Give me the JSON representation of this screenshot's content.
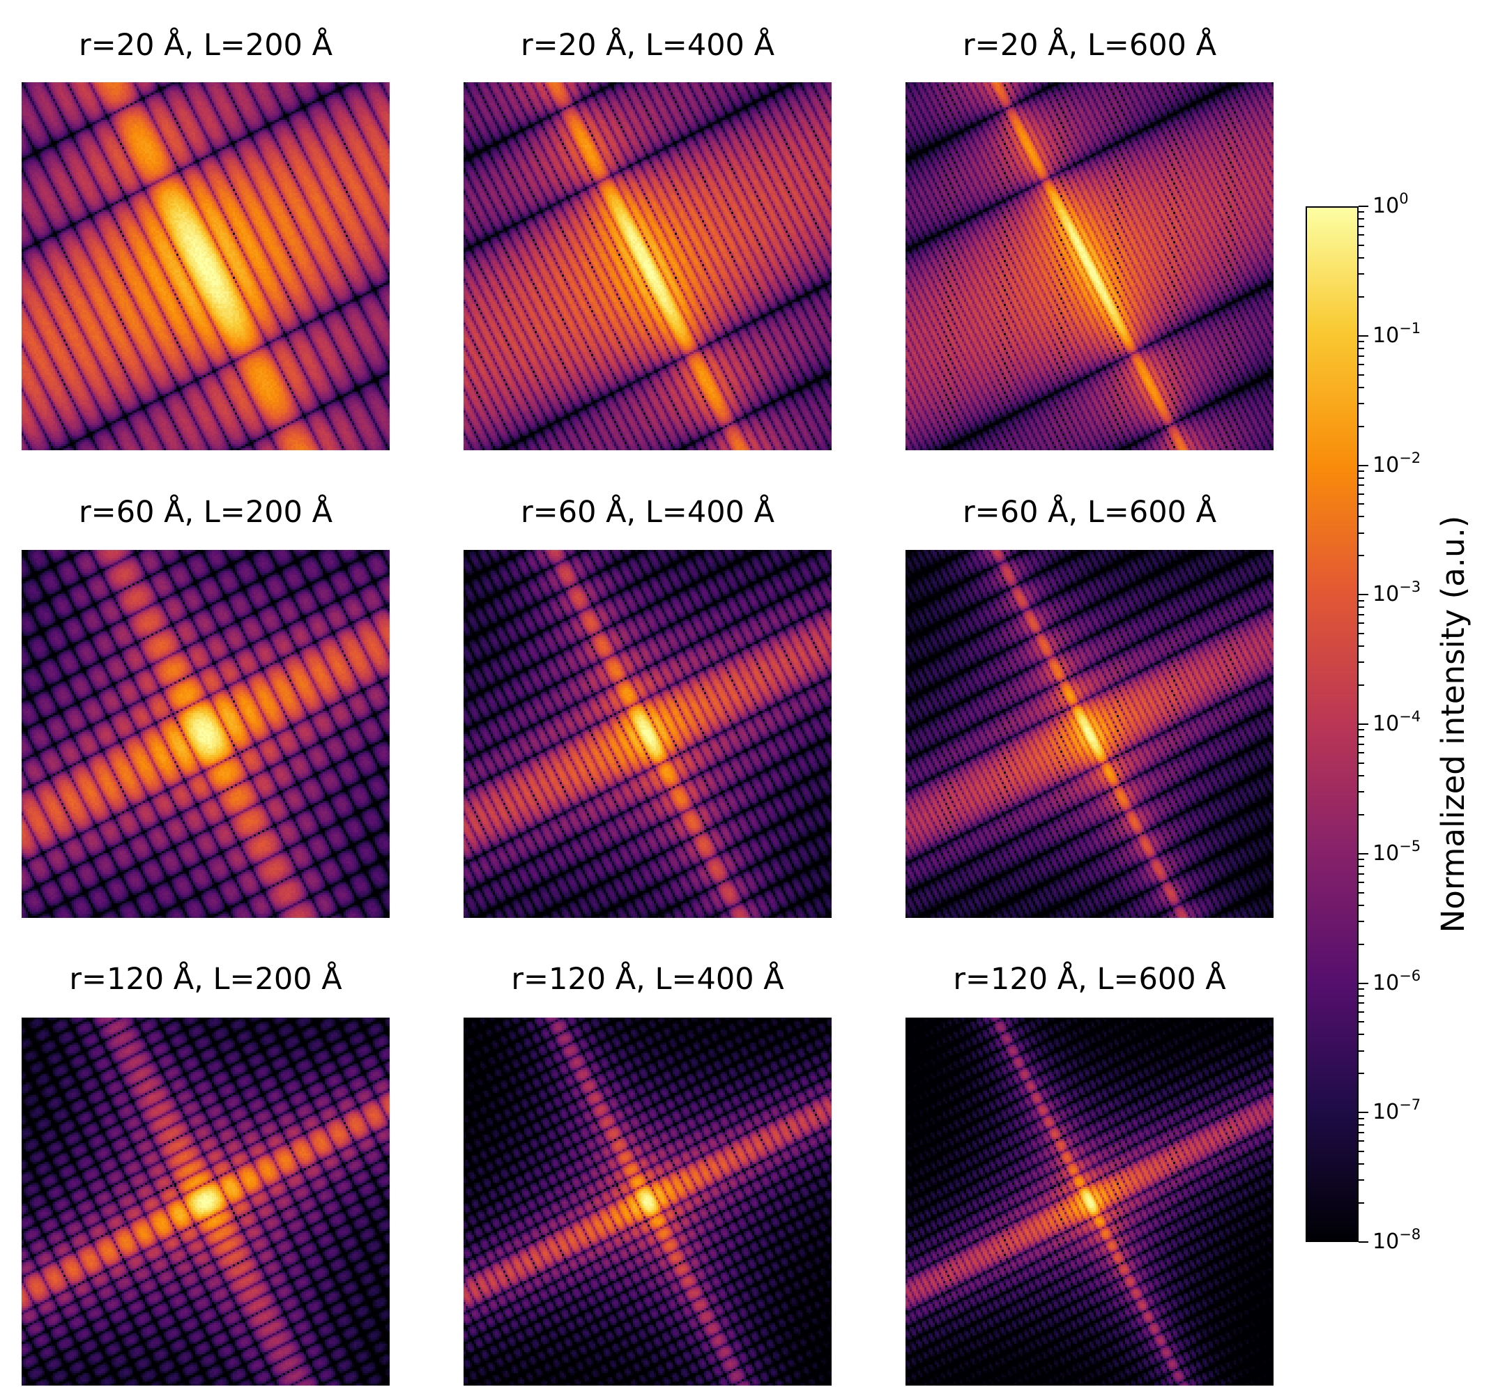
{
  "chart_data": {
    "type": "heatmap",
    "layout": "3x3 grid",
    "panels": [
      {
        "title": "r=20 Å, L=200 Å",
        "r": 20,
        "L": 200
      },
      {
        "title": "r=20 Å, L=400 Å",
        "r": 20,
        "L": 400
      },
      {
        "title": "r=20 Å, L=600 Å",
        "r": 20,
        "L": 600
      },
      {
        "title": "r=60 Å, L=200 Å",
        "r": 60,
        "L": 200
      },
      {
        "title": "r=60 Å, L=400 Å",
        "r": 60,
        "L": 400
      },
      {
        "title": "r=60 Å, L=600 Å",
        "r": 60,
        "L": 600
      },
      {
        "title": "r=120 Å, L=200 Å",
        "r": 120,
        "L": 200
      },
      {
        "title": "r=120 Å, L=400 Å",
        "r": 120,
        "L": 400
      },
      {
        "title": "r=120 Å, L=600 Å",
        "r": 120,
        "L": 600
      }
    ],
    "colorbar": {
      "label": "Normalized intensity (a.u.)",
      "scale": "log",
      "range": [
        1e-08,
        1
      ],
      "colormap": "inferno",
      "ticks": [
        {
          "base": "10",
          "exp": "0",
          "value": 1
        },
        {
          "base": "10",
          "exp": "−1",
          "value": 0.1
        },
        {
          "base": "10",
          "exp": "−2",
          "value": 0.01
        },
        {
          "base": "10",
          "exp": "−3",
          "value": 0.001
        },
        {
          "base": "10",
          "exp": "−4",
          "value": 0.0001
        },
        {
          "base": "10",
          "exp": "−5",
          "value": 1e-05
        },
        {
          "base": "10",
          "exp": "−6",
          "value": 1e-06
        },
        {
          "base": "10",
          "exp": "−7",
          "value": 1e-07
        },
        {
          "base": "10",
          "exp": "−8",
          "value": 1e-08
        }
      ]
    }
  }
}
